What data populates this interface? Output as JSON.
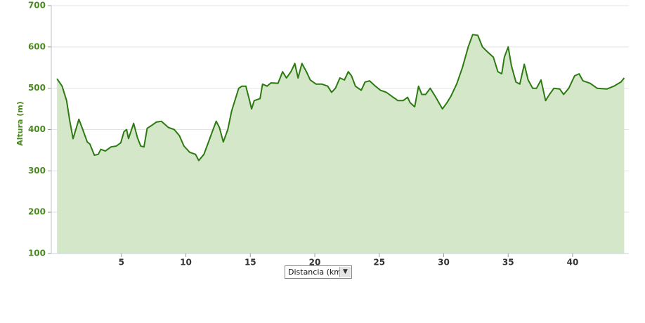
{
  "chart_data": {
    "type": "area",
    "ylabel": "Altura (m)",
    "xlabel": "Distancia (km)",
    "x": [
      0,
      0.4,
      0.75,
      1.0,
      1.25,
      1.7,
      2.0,
      2.35,
      2.55,
      2.9,
      3.2,
      3.4,
      3.75,
      4.2,
      4.6,
      4.95,
      5.2,
      5.4,
      5.55,
      5.95,
      6.25,
      6.5,
      6.75,
      7.0,
      7.35,
      7.7,
      8.1,
      8.65,
      9.1,
      9.5,
      9.85,
      10.3,
      10.75,
      11.0,
      11.4,
      11.7,
      12.05,
      12.35,
      12.6,
      12.9,
      13.25,
      13.55,
      13.9,
      14.1,
      14.35,
      14.65,
      14.9,
      15.1,
      15.3,
      15.75,
      15.95,
      16.3,
      16.6,
      17.15,
      17.5,
      17.8,
      18.15,
      18.45,
      18.7,
      19.0,
      19.35,
      19.65,
      20.1,
      20.55,
      21.0,
      21.3,
      21.6,
      21.95,
      22.3,
      22.6,
      22.85,
      23.15,
      23.6,
      23.9,
      24.25,
      24.7,
      25.1,
      25.55,
      26.0,
      26.45,
      26.85,
      27.2,
      27.4,
      27.75,
      28.05,
      28.3,
      28.6,
      28.95,
      29.35,
      29.9,
      30.25,
      30.55,
      31.0,
      31.45,
      31.9,
      32.25,
      32.65,
      33.0,
      33.4,
      33.85,
      34.2,
      34.5,
      34.7,
      35.0,
      35.25,
      35.6,
      35.9,
      36.25,
      36.55,
      36.9,
      37.2,
      37.55,
      37.9,
      38.2,
      38.55,
      39.0,
      39.3,
      39.7,
      40.15,
      40.5,
      40.8,
      41.35,
      41.9,
      42.65,
      43.2,
      43.75,
      44.0
    ],
    "series": [
      {
        "color": "#2d7a12",
        "fill": "#d4e7c9",
        "values": [
          523,
          505,
          470,
          420,
          378,
          425,
          400,
          370,
          365,
          338,
          340,
          352,
          348,
          358,
          360,
          368,
          395,
          400,
          378,
          415,
          380,
          360,
          358,
          403,
          410,
          418,
          420,
          405,
          400,
          385,
          360,
          345,
          340,
          325,
          340,
          365,
          395,
          420,
          405,
          370,
          400,
          445,
          480,
          500,
          505,
          505,
          475,
          450,
          470,
          475,
          510,
          505,
          513,
          512,
          540,
          525,
          540,
          560,
          525,
          560,
          540,
          520,
          510,
          510,
          505,
          490,
          500,
          525,
          520,
          540,
          530,
          505,
          495,
          515,
          518,
          505,
          495,
          490,
          480,
          470,
          470,
          478,
          465,
          455,
          505,
          485,
          485,
          500,
          480,
          450,
          465,
          480,
          510,
          550,
          600,
          630,
          628,
          600,
          588,
          575,
          540,
          535,
          575,
          600,
          555,
          515,
          510,
          558,
          520,
          500,
          500,
          520,
          470,
          485,
          500,
          498,
          485,
          500,
          530,
          535,
          518,
          512,
          500,
          498,
          505,
          515,
          525
        ]
      }
    ],
    "xlim": [
      -0.44,
      44.36
    ],
    "ylim": [
      100,
      700
    ],
    "xticks": [
      5,
      10,
      15,
      20,
      25,
      30,
      35,
      40
    ],
    "yticks": [
      100,
      200,
      300,
      400,
      500,
      600,
      700
    ],
    "grid": true
  }
}
